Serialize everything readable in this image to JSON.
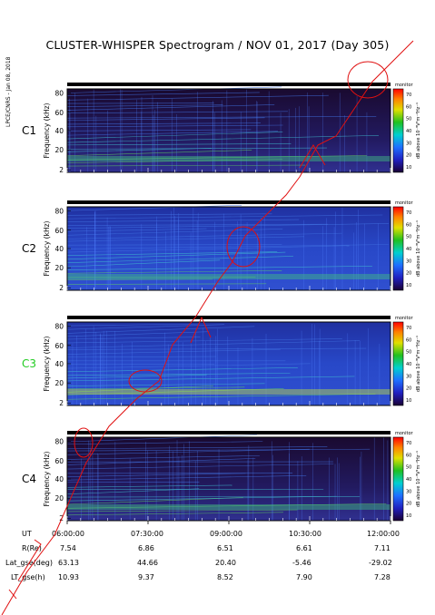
{
  "title": "CLUSTER-WHISPER Spectrogram / NOV 01, 2017 (Day 305)",
  "credit": "LPCE/CNRS - Jan 08, 2018",
  "colorbar": {
    "ticks": [
      "70",
      "60",
      "50",
      "40",
      "30",
      "20",
      "10"
    ],
    "label": "dB above 10⁻⁸V²m⁻²Hz⁻¹"
  },
  "panels": [
    {
      "name": "C1",
      "color": "#000000",
      "mode": "monitor"
    },
    {
      "name": "C2",
      "color": "#000000",
      "mode": "monitor"
    },
    {
      "name": "C3",
      "color": "#22cc22",
      "mode": "monitor"
    },
    {
      "name": "C4",
      "color": "#000000",
      "mode": "monitor"
    }
  ],
  "chart_data": {
    "type": "heatmap",
    "ylabel": "Frequency (kHz)",
    "yticks": [
      "80",
      "60",
      "40",
      "20",
      "2"
    ],
    "x": [
      "06:00:00",
      "07:30:00",
      "09:00:00",
      "10:30:00",
      "12:00:00"
    ]
  },
  "ephemeris": {
    "UT": {
      "label": "UT",
      "values": [
        "06:00:00",
        "07:30:00",
        "09:00:00",
        "10:30:00",
        "12:00:00"
      ]
    },
    "R": {
      "label": "R(Re)",
      "values": [
        "7.54",
        "6.86",
        "6.51",
        "6.61",
        "7.11"
      ]
    },
    "Lat": {
      "label": "Lat_gse(deg)",
      "values": [
        "63.13",
        "44.66",
        "20.40",
        "-5.46",
        "-29.02"
      ]
    },
    "LT": {
      "label": "LT_gse(h)",
      "values": [
        "10.93",
        "9.37",
        "8.52",
        "7.90",
        "7.28"
      ]
    }
  }
}
